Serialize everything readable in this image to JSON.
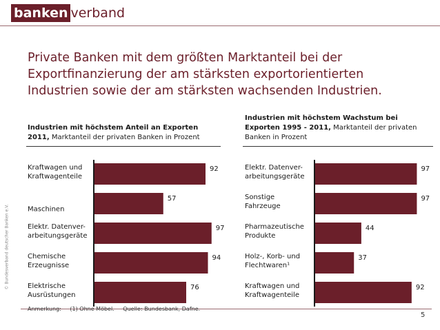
{
  "logo": {
    "part1": "banken",
    "part2": "verband"
  },
  "side_text": "© Bundesverband deutscher Banken e.V.",
  "title": "Private Banken mit dem größten Marktanteil bei der Exportfinanzierung der am stärksten exportorientierten Industrien sowie der am stärksten wachsenden Industrien.",
  "left_subhead": {
    "bold": "Industrien mit höchstem Anteil an Exporten 2011,",
    "normal": " Marktanteil der privaten Banken in Prozent"
  },
  "right_subhead": {
    "bold": "Industrien mit höchstem Wachstum bei Exporten 1995 - 2011,",
    "normal": " Marktanteil der privaten Banken in Prozent"
  },
  "footnote": {
    "label": "Anmerkung:",
    "note": "(1) Ohne Möbel.",
    "source": "Quelle: Bundesbank, Dafne."
  },
  "page_number": "5",
  "colors": {
    "bar": "#6b1f2a",
    "title": "#6b1f2a",
    "axis": "#1a1a1a"
  },
  "chart_data": [
    {
      "type": "bar",
      "orientation": "horizontal",
      "title": "",
      "categories": [
        [
          "Kraftwagen und",
          "Kraftwagenteile"
        ],
        [
          "Maschinen"
        ],
        [
          "Elektr. Datenver-",
          "arbeitungsgeräte"
        ],
        [
          "Chemische",
          "Erzeugnisse"
        ],
        [
          "Elektrische",
          "Ausrüstungen"
        ]
      ],
      "values": [
        92,
        57,
        97,
        94,
        76
      ],
      "xlim": [
        0,
        100
      ]
    },
    {
      "type": "bar",
      "orientation": "horizontal",
      "title": "",
      "categories": [
        [
          "Elektr. Datenver-",
          "arbeitungsgeräte"
        ],
        [
          "Sonstige",
          "Fahrzeuge"
        ],
        [
          "Pharmazeutische",
          "Produkte"
        ],
        [
          "Holz-, Korb- und",
          "Flechtwaren¹"
        ],
        [
          "Kraftwagen und",
          "Kraftwagenteile"
        ]
      ],
      "values": [
        97,
        97,
        44,
        37,
        92
      ],
      "xlim": [
        0,
        100
      ]
    }
  ]
}
